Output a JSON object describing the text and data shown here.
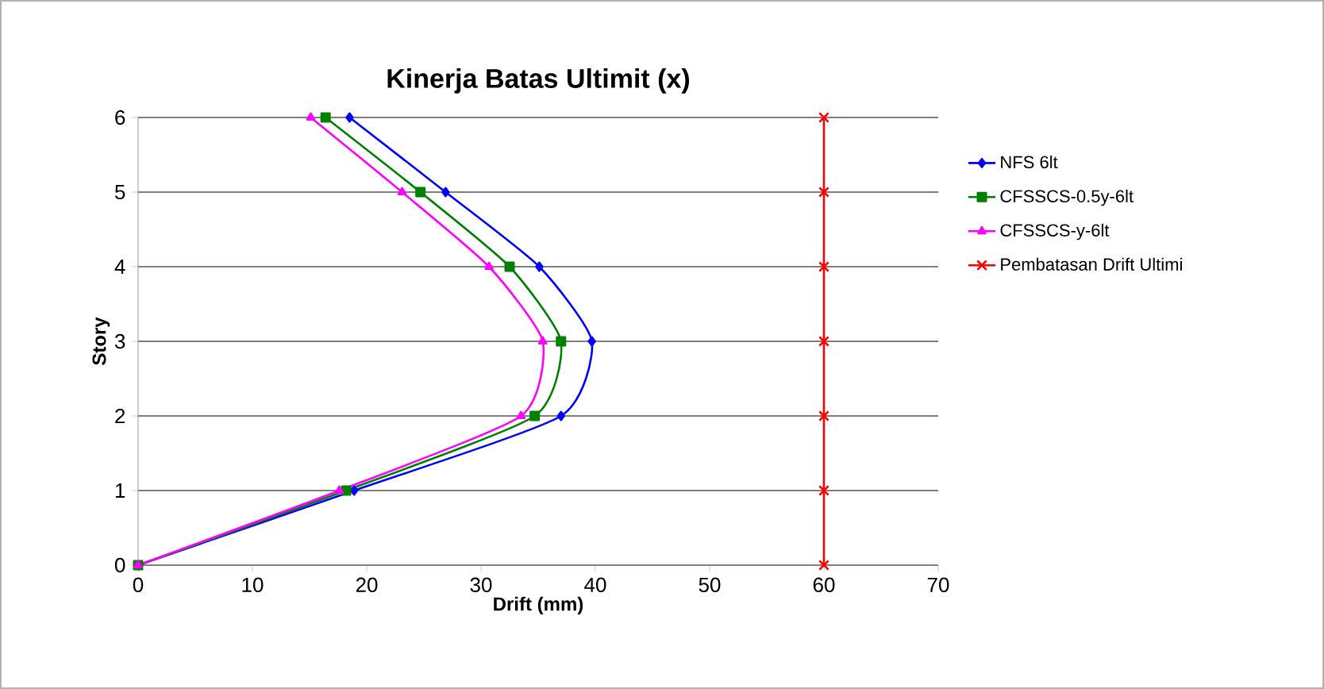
{
  "chart_data": {
    "type": "line",
    "title": "Kinerja Batas Ultimit (x)",
    "xlabel": "Drift (mm)",
    "ylabel": "Story",
    "xlim": [
      0,
      70
    ],
    "xticks": [
      0,
      10,
      20,
      30,
      40,
      50,
      60,
      70
    ],
    "ylim": [
      0,
      6
    ],
    "yticks": [
      0,
      1,
      2,
      3,
      4,
      5,
      6
    ],
    "grid": "y",
    "legend": "right",
    "series": [
      {
        "name": "NFS 6lt",
        "color": "#0000ff",
        "marker": "diamond",
        "x": [
          0,
          18.9,
          37.0,
          39.7,
          35.1,
          26.9,
          18.5
        ],
        "values": [
          0,
          1,
          2,
          3,
          4,
          5,
          6
        ]
      },
      {
        "name": "CFSSCS-0.5y-6lt",
        "color": "#008000",
        "marker": "square",
        "x": [
          0,
          18.2,
          34.7,
          37.0,
          32.5,
          24.7,
          16.4
        ],
        "values": [
          0,
          1,
          2,
          3,
          4,
          5,
          6
        ]
      },
      {
        "name": "CFSSCS-y-6lt",
        "color": "#ff00ff",
        "marker": "triangle",
        "x": [
          0,
          17.6,
          33.5,
          35.4,
          30.7,
          23.1,
          15.1
        ],
        "values": [
          0,
          1,
          2,
          3,
          4,
          5,
          6
        ]
      },
      {
        "name": "Pembatasan Drift Ultimi",
        "color": "#ff0000",
        "marker": "cross",
        "x": [
          60,
          60,
          60,
          60,
          60,
          60,
          60
        ],
        "values": [
          0,
          1,
          2,
          3,
          4,
          5,
          6
        ]
      }
    ]
  }
}
